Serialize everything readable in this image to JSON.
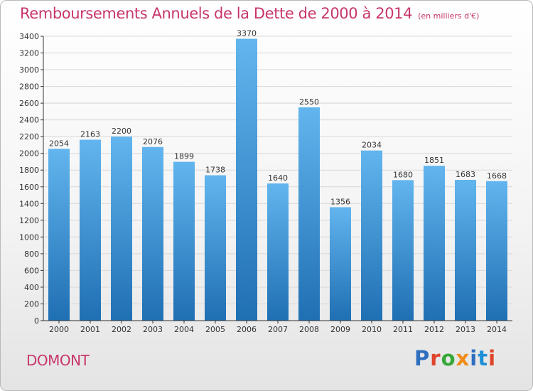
{
  "header": {
    "title": "Remboursements Annuels de la Dette de 2000 à 2014",
    "unit_note": "(en milliers d'€)"
  },
  "footer": {
    "commune": "DOMONT",
    "logo_text": "Proxiti",
    "logo_colors": [
      "#2f6fc0",
      "#e0452b",
      "#35a838",
      "#f08c1a",
      "#2f6fc0",
      "#1f8fd6",
      "#e0452b"
    ]
  },
  "colors": {
    "title": "#c7366c",
    "bar_top": "#62b5ee",
    "bar_bottom": "#1f6fb3",
    "grid": "#d8d8d8",
    "axis": "#333333"
  },
  "chart_data": {
    "type": "bar",
    "categories": [
      "2000",
      "2001",
      "2002",
      "2003",
      "2004",
      "2005",
      "2006",
      "2007",
      "2008",
      "2009",
      "2010",
      "2011",
      "2012",
      "2013",
      "2014"
    ],
    "values": [
      2054,
      2163,
      2200,
      2076,
      1899,
      1738,
      3370,
      1640,
      2550,
      1356,
      2034,
      1680,
      1851,
      1683,
      1668
    ],
    "ylim": [
      0,
      3400
    ],
    "ytick_step": 200,
    "grid": true,
    "data_labels": true,
    "title": "Remboursements Annuels de la Dette de 2000 à 2014",
    "xlabel": "",
    "ylabel": ""
  }
}
